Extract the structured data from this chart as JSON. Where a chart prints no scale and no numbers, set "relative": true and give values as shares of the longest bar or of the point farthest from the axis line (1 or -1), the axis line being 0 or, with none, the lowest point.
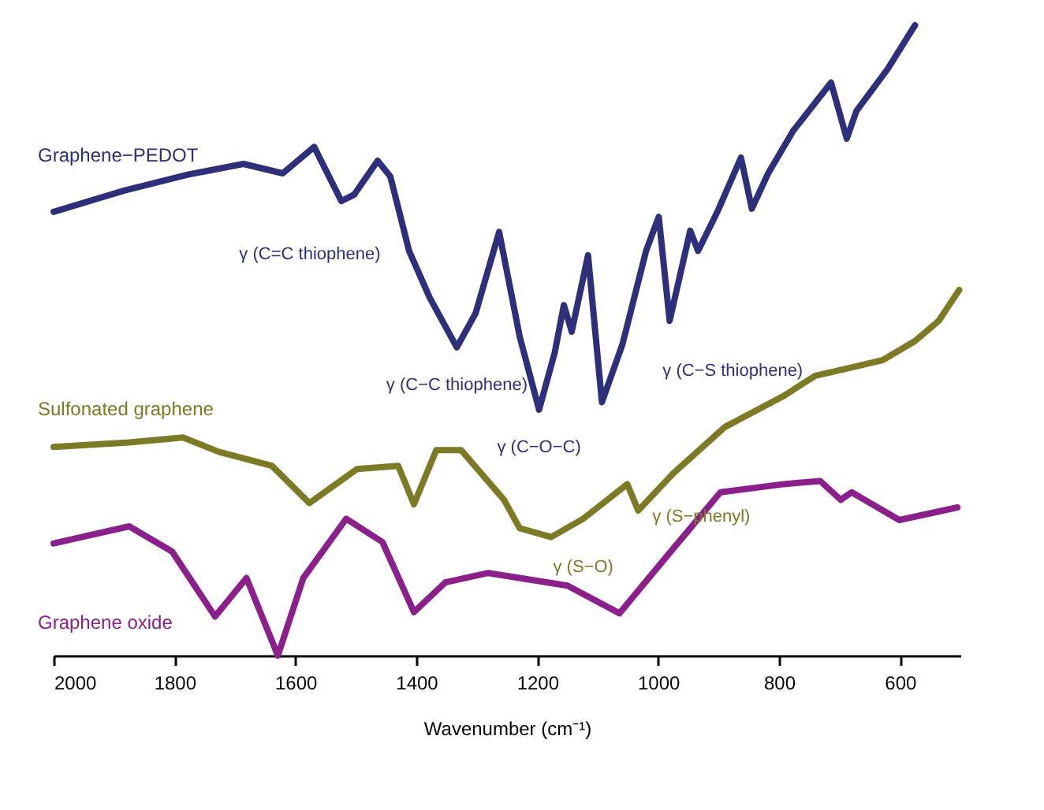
{
  "chart_data": {
    "type": "line",
    "relative": true,
    "xlabel": "Wavenumber (cm⁻¹)",
    "xlim": [
      2000,
      500
    ],
    "xticks": [
      2000,
      1800,
      1600,
      1400,
      1200,
      1000,
      800,
      600
    ],
    "grid": false,
    "marker": "none",
    "line_style": "solid",
    "series": [
      {
        "name": "Graphene−PEDOT",
        "color": "#2e2f7a",
        "x": [
          2000,
          1882,
          1778,
          1686,
          1621,
          1569,
          1524,
          1503,
          1464,
          1443,
          1412,
          1378,
          1333,
          1302,
          1263,
          1229,
          1197,
          1171,
          1156,
          1143,
          1116,
          1093,
          1059,
          1020,
          999,
          981,
          947,
          934,
          902,
          863,
          845,
          818,
          777,
          714,
          688,
          672,
          620,
          583,
          575
        ],
        "values": [
          0.704,
          0.738,
          0.763,
          0.78,
          0.765,
          0.807,
          0.721,
          0.731,
          0.785,
          0.76,
          0.642,
          0.568,
          0.489,
          0.543,
          0.672,
          0.506,
          0.39,
          0.481,
          0.556,
          0.514,
          0.635,
          0.402,
          0.494,
          0.642,
          0.696,
          0.531,
          0.674,
          0.642,
          0.704,
          0.79,
          0.709,
          0.765,
          0.832,
          0.909,
          0.82,
          0.864,
          0.931,
          0.988,
          1.0
        ]
      },
      {
        "name": "Sulfonated graphene",
        "color": "#7d7a25",
        "x": [
          2000,
          1875,
          1786,
          1726,
          1639,
          1577,
          1498,
          1430,
          1404,
          1367,
          1326,
          1255,
          1229,
          1177,
          1124,
          1051,
          1033,
          975,
          889,
          792,
          740,
          680,
          628,
          575,
          536,
          502
        ],
        "values": [
          0.331,
          0.338,
          0.346,
          0.323,
          0.301,
          0.242,
          0.296,
          0.301,
          0.24,
          0.326,
          0.326,
          0.247,
          0.202,
          0.188,
          0.217,
          0.272,
          0.23,
          0.289,
          0.363,
          0.412,
          0.444,
          0.457,
          0.469,
          0.499,
          0.531,
          0.58
        ]
      },
      {
        "name": "Graphene oxide",
        "color": "#8b1f8b",
        "x": [
          2000,
          1875,
          1804,
          1733,
          1681,
          1629,
          1587,
          1516,
          1456,
          1404,
          1352,
          1281,
          1150,
          1064,
          994,
          897,
          792,
          732,
          698,
          680,
          601,
          505
        ],
        "values": [
          0.178,
          0.205,
          0.165,
          0.062,
          0.123,
          0,
          0.123,
          0.217,
          0.18,
          0.069,
          0.116,
          0.131,
          0.111,
          0.067,
          0.148,
          0.259,
          0.272,
          0.277,
          0.247,
          0.259,
          0.215,
          0.235
        ]
      }
    ],
    "annotations": [
      {
        "text": "γ (C=C thiophene)",
        "x": 1524,
        "y": 0.721
      },
      {
        "text": "γ (C−C thiophene)",
        "x": 1333,
        "y": 0.489
      },
      {
        "text": "γ (C−O−C)",
        "x": 1197,
        "y": 0.39
      },
      {
        "text": "γ (C−S thiophene)",
        "x": 981,
        "y": 0.531
      },
      {
        "text": "γ (S−O)",
        "x": 1150,
        "y": 0.2
      },
      {
        "text": "γ (S−phenyl)",
        "x": 1033,
        "y": 0.23
      }
    ]
  }
}
